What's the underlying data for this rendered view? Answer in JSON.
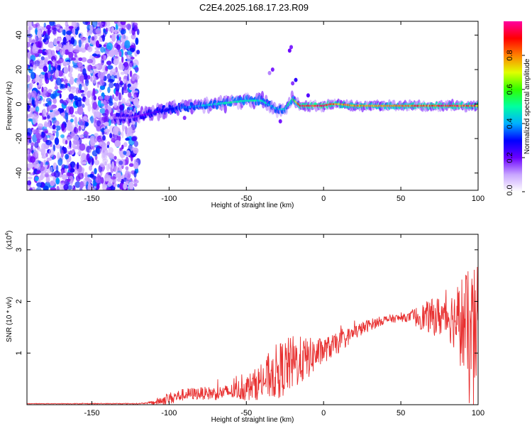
{
  "title": "C2E4.2025.168.17.23.R09",
  "chart_data": [
    {
      "type": "heatmap",
      "name": "spectrogram",
      "xlabel": "Height of straight line (km)",
      "ylabel": "Frequency (Hz)",
      "xlim": [
        -192,
        100
      ],
      "ylim": [
        -50,
        48
      ],
      "xticks": [
        -150,
        -100,
        -50,
        0,
        50,
        100
      ],
      "yticks": [
        -40,
        -20,
        0,
        20,
        40
      ],
      "colorbar": {
        "label": "Normalized spectral amplitude",
        "range": [
          0,
          1
        ],
        "ticks": [
          "0.0",
          "0.2",
          "0.4",
          "0.6",
          "0.8"
        ],
        "colors": [
          "#ffffff",
          "#c9a6ff",
          "#6a00ff",
          "#0000ff",
          "#00b0ff",
          "#00ffa0",
          "#30ff00",
          "#e0ff00",
          "#ff8000",
          "#ff0000",
          "#ff00a0"
        ]
      },
      "ridge": {
        "description": "dominant signal band",
        "x": [
          -125,
          -110,
          -100,
          -90,
          -80,
          -70,
          -60,
          -50,
          -40,
          -30,
          -25,
          -20,
          -15,
          -10,
          -5,
          0,
          5,
          10,
          20,
          40,
          60,
          80,
          100
        ],
        "y": [
          -8,
          -5,
          -3,
          -2,
          -1,
          0,
          1,
          2,
          2,
          -3,
          -3,
          3,
          -1,
          -1,
          -1,
          -1,
          0,
          0,
          -1,
          -1,
          -1,
          -1,
          -1
        ],
        "amplitude": [
          0.15,
          0.25,
          0.3,
          0.35,
          0.4,
          0.45,
          0.5,
          0.5,
          0.45,
          0.4,
          0.45,
          0.55,
          0.9,
          0.9,
          0.95,
          1.0,
          0.9,
          0.8,
          0.8,
          0.75,
          0.85,
          0.9,
          0.8
        ]
      }
    },
    {
      "type": "line",
      "name": "snr",
      "xlabel": "Height of straight line (km)",
      "ylabel": "SNR (10 * v/v)",
      "scale_label": "(x10",
      "scale_exp": "4",
      "scale_close": ")",
      "xlim": [
        -192,
        100
      ],
      "ylim": [
        0,
        3.3
      ],
      "xticks": [
        -150,
        -100,
        -50,
        0,
        50,
        100
      ],
      "yticks": [
        1,
        2,
        3
      ],
      "color": "#e83030",
      "envelope": {
        "x": [
          -192,
          -120,
          -110,
          -100,
          -90,
          -80,
          -70,
          -60,
          -50,
          -40,
          -30,
          -20,
          -10,
          0,
          10,
          20,
          30,
          40,
          50,
          60,
          70,
          80,
          90,
          95,
          100
        ],
        "y": [
          0.02,
          0.02,
          0.04,
          0.12,
          0.2,
          0.22,
          0.22,
          0.25,
          0.32,
          0.45,
          0.65,
          0.8,
          0.9,
          1.05,
          1.2,
          1.4,
          1.55,
          1.65,
          1.68,
          1.7,
          1.7,
          1.72,
          1.6,
          1.2,
          1.5
        ]
      },
      "amplitude": {
        "x": [
          -192,
          -115,
          -100,
          -80,
          -60,
          -40,
          -30,
          -20,
          -10,
          0,
          10,
          20,
          40,
          55,
          60,
          70,
          80,
          85,
          90,
          95,
          100
        ],
        "y": [
          0.005,
          0.01,
          0.12,
          0.12,
          0.15,
          0.35,
          0.55,
          0.55,
          0.4,
          0.25,
          0.2,
          0.15,
          0.08,
          0.08,
          0.2,
          0.35,
          0.45,
          0.6,
          1.0,
          1.4,
          1.2
        ]
      }
    }
  ]
}
